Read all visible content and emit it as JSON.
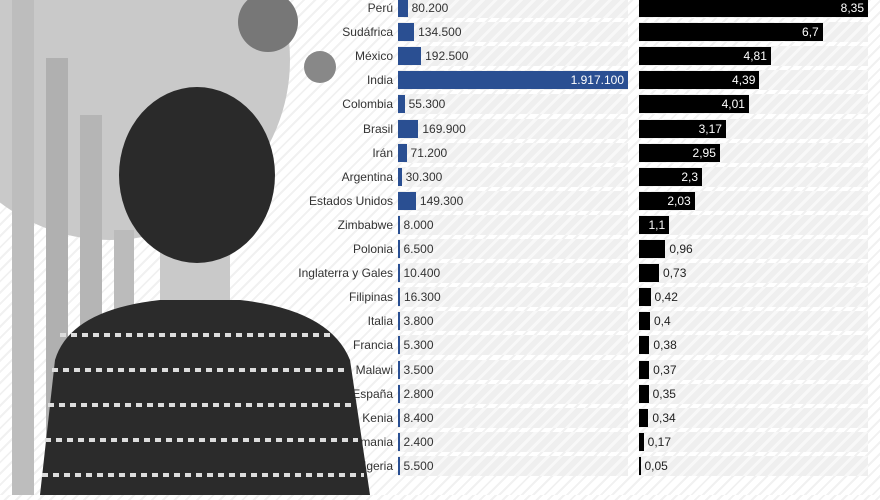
{
  "colors": {
    "cases_bar": "#2a4f92",
    "rate_bar": "#000000"
  },
  "chart_data": [
    {
      "type": "bar",
      "orientation": "horizontal",
      "categories": [
        "Perú",
        "Sudáfrica",
        "México",
        "India",
        "Colombia",
        "Brasil",
        "Irán",
        "Argentina",
        "Estados Unidos",
        "Zimbabwe",
        "Polonia",
        "Inglaterra y Gales",
        "Filipinas",
        "Italia",
        "Francia",
        "Malawi",
        "España",
        "Kenia",
        "Alemania",
        "Nigeria"
      ],
      "values": [
        80200,
        134500,
        192500,
        1917100,
        55300,
        169900,
        71200,
        30300,
        149300,
        8000,
        6500,
        10400,
        16300,
        3800,
        5300,
        3500,
        2800,
        8400,
        2400,
        5500
      ],
      "value_labels": [
        "80.200",
        "134.500",
        "192.500",
        "1.917.100",
        "55.300",
        "169.900",
        "71.200",
        "30.300",
        "149.300",
        "8.000",
        "6.500",
        "10.400",
        "16.300",
        "3.800",
        "5.300",
        "3.500",
        "2.800",
        "8.400",
        "2.400",
        "5.500"
      ],
      "xlim": [
        0,
        1917100
      ]
    },
    {
      "type": "bar",
      "orientation": "horizontal",
      "values": [
        8.35,
        6.7,
        4.81,
        4.39,
        4.01,
        3.17,
        2.95,
        2.3,
        2.03,
        1.1,
        0.96,
        0.73,
        0.42,
        0.4,
        0.38,
        0.37,
        0.35,
        0.34,
        0.17,
        0.05
      ],
      "value_labels": [
        "8,35",
        "6,7",
        "4,81",
        "4,39",
        "4,01",
        "3,17",
        "2,95",
        "2,3",
        "2,03",
        "1,1",
        "0,96",
        "0,73",
        "0,42",
        "0,4",
        "0,38",
        "0,37",
        "0,35",
        "0,34",
        "0,17",
        "0,05"
      ],
      "xlim": [
        0,
        8.35
      ]
    }
  ]
}
